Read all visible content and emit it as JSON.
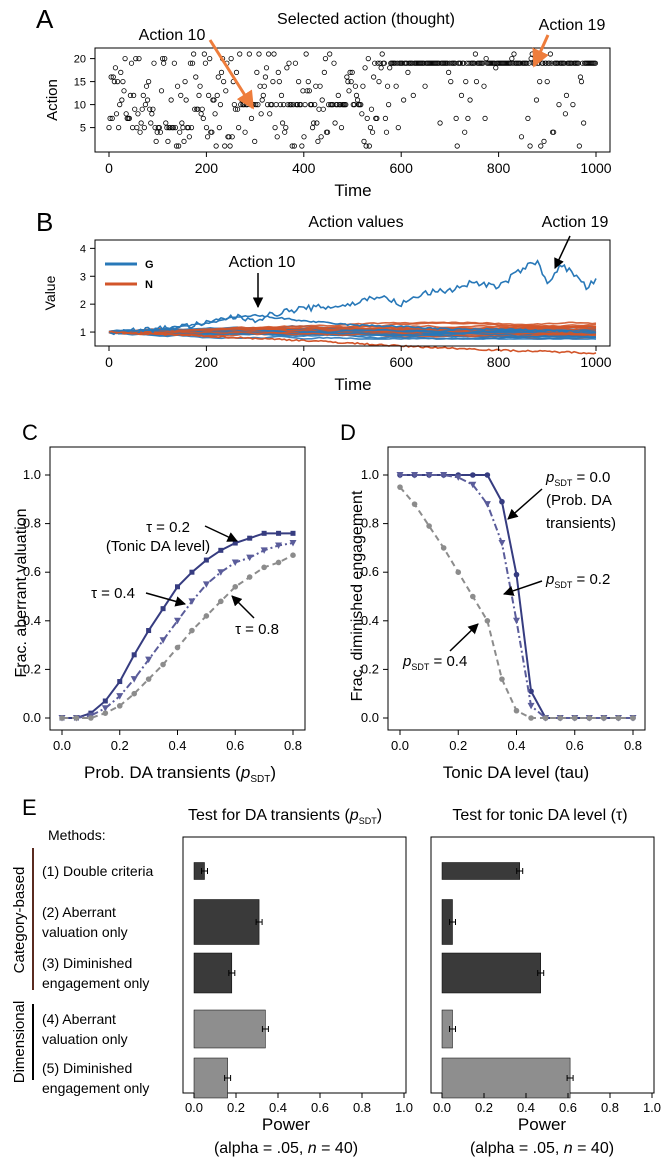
{
  "colors": {
    "g_blue": "#2878b8",
    "n_orange": "#d2552a",
    "navy": "#363c80",
    "slate": "#5a5c9a",
    "gray": "#8c8c8c",
    "arrow_orange": "#ee7d3c",
    "bar_dark": "#3a3a3a",
    "bar_light": "#8e8e8e"
  },
  "panelA": {
    "letter": "A",
    "title": "Selected action (thought)",
    "ylabel": "Action",
    "xlabel": "Time",
    "annot_10": "Action 10",
    "annot_19": "Action 19"
  },
  "panelB": {
    "letter": "B",
    "title": "Action values",
    "ylabel": "Value",
    "xlabel": "Time",
    "annot_10": "Action 10",
    "annot_19": "Action 19",
    "legend_g": "G",
    "legend_n": "N"
  },
  "panelC": {
    "letter": "C",
    "ylabel": "Frac. aberrant valuation",
    "xlabel_main": "Prob.  DA transients (",
    "xlabel_p": "p",
    "xlabel_sub": "SDT",
    "xlabel_end": ")",
    "annot_tau02": "τ = 0.2",
    "annot_tonic": "(Tonic DA level)",
    "annot_tau04": "τ = 0.4",
    "annot_tau08": "τ = 0.8"
  },
  "panelD": {
    "letter": "D",
    "ylabel": "Frac. diminished engagement",
    "xlabel": "Tonic DA level (tau)",
    "p_letter": "p",
    "p_sub": "SDT",
    "annot_p00_val": " = 0.0",
    "annot_p00_l2": "(Prob. DA",
    "annot_p00_l3": "transients)",
    "annot_p02_val": " = 0.2",
    "annot_p04_val": " = 0.4"
  },
  "panelE": {
    "letter": "E",
    "methods_title": "Methods:",
    "group1": "Category-based",
    "group2": "Dimensional",
    "methods": [
      [
        "(1) Double criteria"
      ],
      [
        "(2) Aberrant",
        "valuation only"
      ],
      [
        "(3) Diminished",
        "engagement only"
      ],
      [
        "(4) Aberrant",
        "valuation only"
      ],
      [
        "(5) Diminished",
        "engagement only"
      ]
    ],
    "left_title_main": "Test for DA transients (",
    "left_title_p": "p",
    "left_title_sub": "SDT",
    "left_title_end": ")",
    "right_title": "Test for tonic DA level (τ)",
    "xlabel": "Power",
    "xnote_a": "(alpha = .05, ",
    "xnote_n": "n",
    "xnote_b": " = 40)"
  },
  "chart_data": [
    {
      "id": "A",
      "type": "scatter",
      "title": "Selected action (thought)",
      "xlabel": "Time",
      "ylabel": "Action",
      "xlim": [
        0,
        1000
      ],
      "ylim": [
        1,
        21
      ],
      "xticks": [
        0,
        200,
        400,
        600,
        800,
        1000
      ],
      "yticks": [
        5,
        10,
        15,
        20
      ],
      "description_series": [
        {
          "name": "Action 10",
          "y": 10,
          "dense_from": 270,
          "dense_to": 520
        },
        {
          "name": "Action 19",
          "y": 19,
          "dense_from": 560,
          "dense_to": 1000
        }
      ]
    },
    {
      "id": "B",
      "type": "line",
      "title": "Action values",
      "xlabel": "Time",
      "ylabel": "Value",
      "xlim": [
        0,
        1000
      ],
      "ylim": [
        0.5,
        4.3
      ],
      "xticks": [
        0,
        200,
        400,
        600,
        800,
        1000
      ],
      "yticks": [
        1,
        2,
        3,
        4
      ],
      "legend": [
        "G",
        "N"
      ],
      "series": [
        {
          "name": "G",
          "label": "Action 19",
          "x": [
            0,
            50,
            100,
            150,
            200,
            250,
            300,
            350,
            400,
            450,
            500,
            550,
            600,
            650,
            700,
            750,
            800,
            850,
            880,
            900,
            930,
            960,
            980,
            1000
          ],
          "values": [
            1.0,
            1.05,
            1.1,
            1.2,
            1.3,
            1.55,
            1.45,
            1.7,
            1.85,
            1.9,
            2.0,
            2.3,
            2.0,
            2.4,
            2.5,
            2.8,
            2.6,
            3.3,
            3.5,
            2.8,
            3.4,
            3.0,
            2.6,
            2.85
          ]
        },
        {
          "name": "G",
          "label": "Action 10",
          "x": [
            0,
            100,
            200,
            250,
            300,
            350,
            400,
            500,
            600,
            700,
            800,
            900,
            1000
          ],
          "values": [
            1.0,
            1.1,
            1.3,
            1.5,
            1.6,
            1.5,
            1.4,
            1.25,
            1.2,
            1.1,
            1.1,
            1.05,
            1.0
          ]
        },
        {
          "name": "N",
          "x": [
            0,
            200,
            400,
            600,
            800,
            1000
          ],
          "values": [
            1.0,
            0.85,
            0.7,
            0.5,
            0.35,
            0.25
          ]
        }
      ]
    },
    {
      "id": "C",
      "type": "line",
      "xlabel": "Prob.  DA transients (pSDT)",
      "ylabel": "Frac. aberrant valuation",
      "xlim": [
        0,
        0.8
      ],
      "ylim": [
        0,
        1.0
      ],
      "xticks": [
        0.0,
        0.2,
        0.4,
        0.6,
        0.8
      ],
      "yticks": [
        0.0,
        0.2,
        0.4,
        0.6,
        0.8,
        1.0
      ],
      "x": [
        0.0,
        0.05,
        0.1,
        0.15,
        0.2,
        0.25,
        0.3,
        0.35,
        0.4,
        0.45,
        0.5,
        0.55,
        0.6,
        0.65,
        0.7,
        0.75,
        0.8
      ],
      "series": [
        {
          "name": "τ = 0.2",
          "values": [
            0.0,
            0.0,
            0.02,
            0.07,
            0.15,
            0.26,
            0.36,
            0.45,
            0.54,
            0.6,
            0.65,
            0.69,
            0.72,
            0.74,
            0.76,
            0.76,
            0.76
          ]
        },
        {
          "name": "τ = 0.4",
          "values": [
            0.0,
            0.0,
            0.01,
            0.04,
            0.09,
            0.16,
            0.24,
            0.32,
            0.4,
            0.48,
            0.55,
            0.6,
            0.64,
            0.66,
            0.69,
            0.71,
            0.72
          ]
        },
        {
          "name": "τ = 0.8",
          "values": [
            0.0,
            0.0,
            0.0,
            0.02,
            0.05,
            0.1,
            0.16,
            0.22,
            0.29,
            0.36,
            0.42,
            0.48,
            0.54,
            0.58,
            0.62,
            0.64,
            0.67
          ]
        }
      ]
    },
    {
      "id": "D",
      "type": "line",
      "xlabel": "Tonic DA level (tau)",
      "ylabel": "Frac. diminished engagement",
      "xlim": [
        0,
        0.8
      ],
      "ylim": [
        0,
        1.0
      ],
      "xticks": [
        0.0,
        0.2,
        0.4,
        0.6,
        0.8
      ],
      "yticks": [
        0.0,
        0.2,
        0.4,
        0.6,
        0.8,
        1.0
      ],
      "x": [
        0.0,
        0.05,
        0.1,
        0.15,
        0.2,
        0.25,
        0.3,
        0.35,
        0.4,
        0.45,
        0.5,
        0.55,
        0.6,
        0.65,
        0.7,
        0.75,
        0.8
      ],
      "series": [
        {
          "name": "pSDT = 0.0",
          "values": [
            1.0,
            1.0,
            1.0,
            1.0,
            1.0,
            1.0,
            1.0,
            0.89,
            0.59,
            0.11,
            0.0,
            0.0,
            0.0,
            0.0,
            0.0,
            0.0,
            0.0
          ]
        },
        {
          "name": "pSDT = 0.2",
          "values": [
            1.0,
            1.0,
            1.0,
            1.0,
            0.99,
            0.96,
            0.88,
            0.72,
            0.4,
            0.05,
            0.0,
            0.0,
            0.0,
            0.0,
            0.0,
            0.0,
            0.0
          ]
        },
        {
          "name": "pSDT = 0.4",
          "values": [
            0.95,
            0.88,
            0.79,
            0.7,
            0.6,
            0.5,
            0.4,
            0.16,
            0.03,
            0.0,
            0.0,
            0.0,
            0.0,
            0.0,
            0.0,
            0.0,
            0.0
          ]
        }
      ]
    },
    {
      "id": "E-left",
      "type": "bar",
      "title": "Test for DA transients (pSDT)",
      "xlabel": "Power",
      "xlim": [
        0,
        1.0
      ],
      "xticks": [
        0.0,
        0.2,
        0.4,
        0.6,
        0.8,
        1.0
      ],
      "categories": [
        "(1) Double criteria",
        "(2) Aberrant valuation only",
        "(3) Diminished engagement only",
        "(4) Aberrant valuation only",
        "(5) Diminished engagement only"
      ],
      "values": [
        0.05,
        0.31,
        0.18,
        0.34,
        0.16
      ]
    },
    {
      "id": "E-right",
      "type": "bar",
      "title": "Test for tonic DA level (τ)",
      "xlabel": "Power",
      "xlim": [
        0,
        1.0
      ],
      "xticks": [
        0.0,
        0.2,
        0.4,
        0.6,
        0.8,
        1.0
      ],
      "categories": [
        "(1) Double criteria",
        "(2) Aberrant valuation only",
        "(3) Diminished engagement only",
        "(4) Aberrant valuation only",
        "(5) Diminished engagement only"
      ],
      "values": [
        0.37,
        0.05,
        0.47,
        0.05,
        0.61
      ]
    }
  ]
}
